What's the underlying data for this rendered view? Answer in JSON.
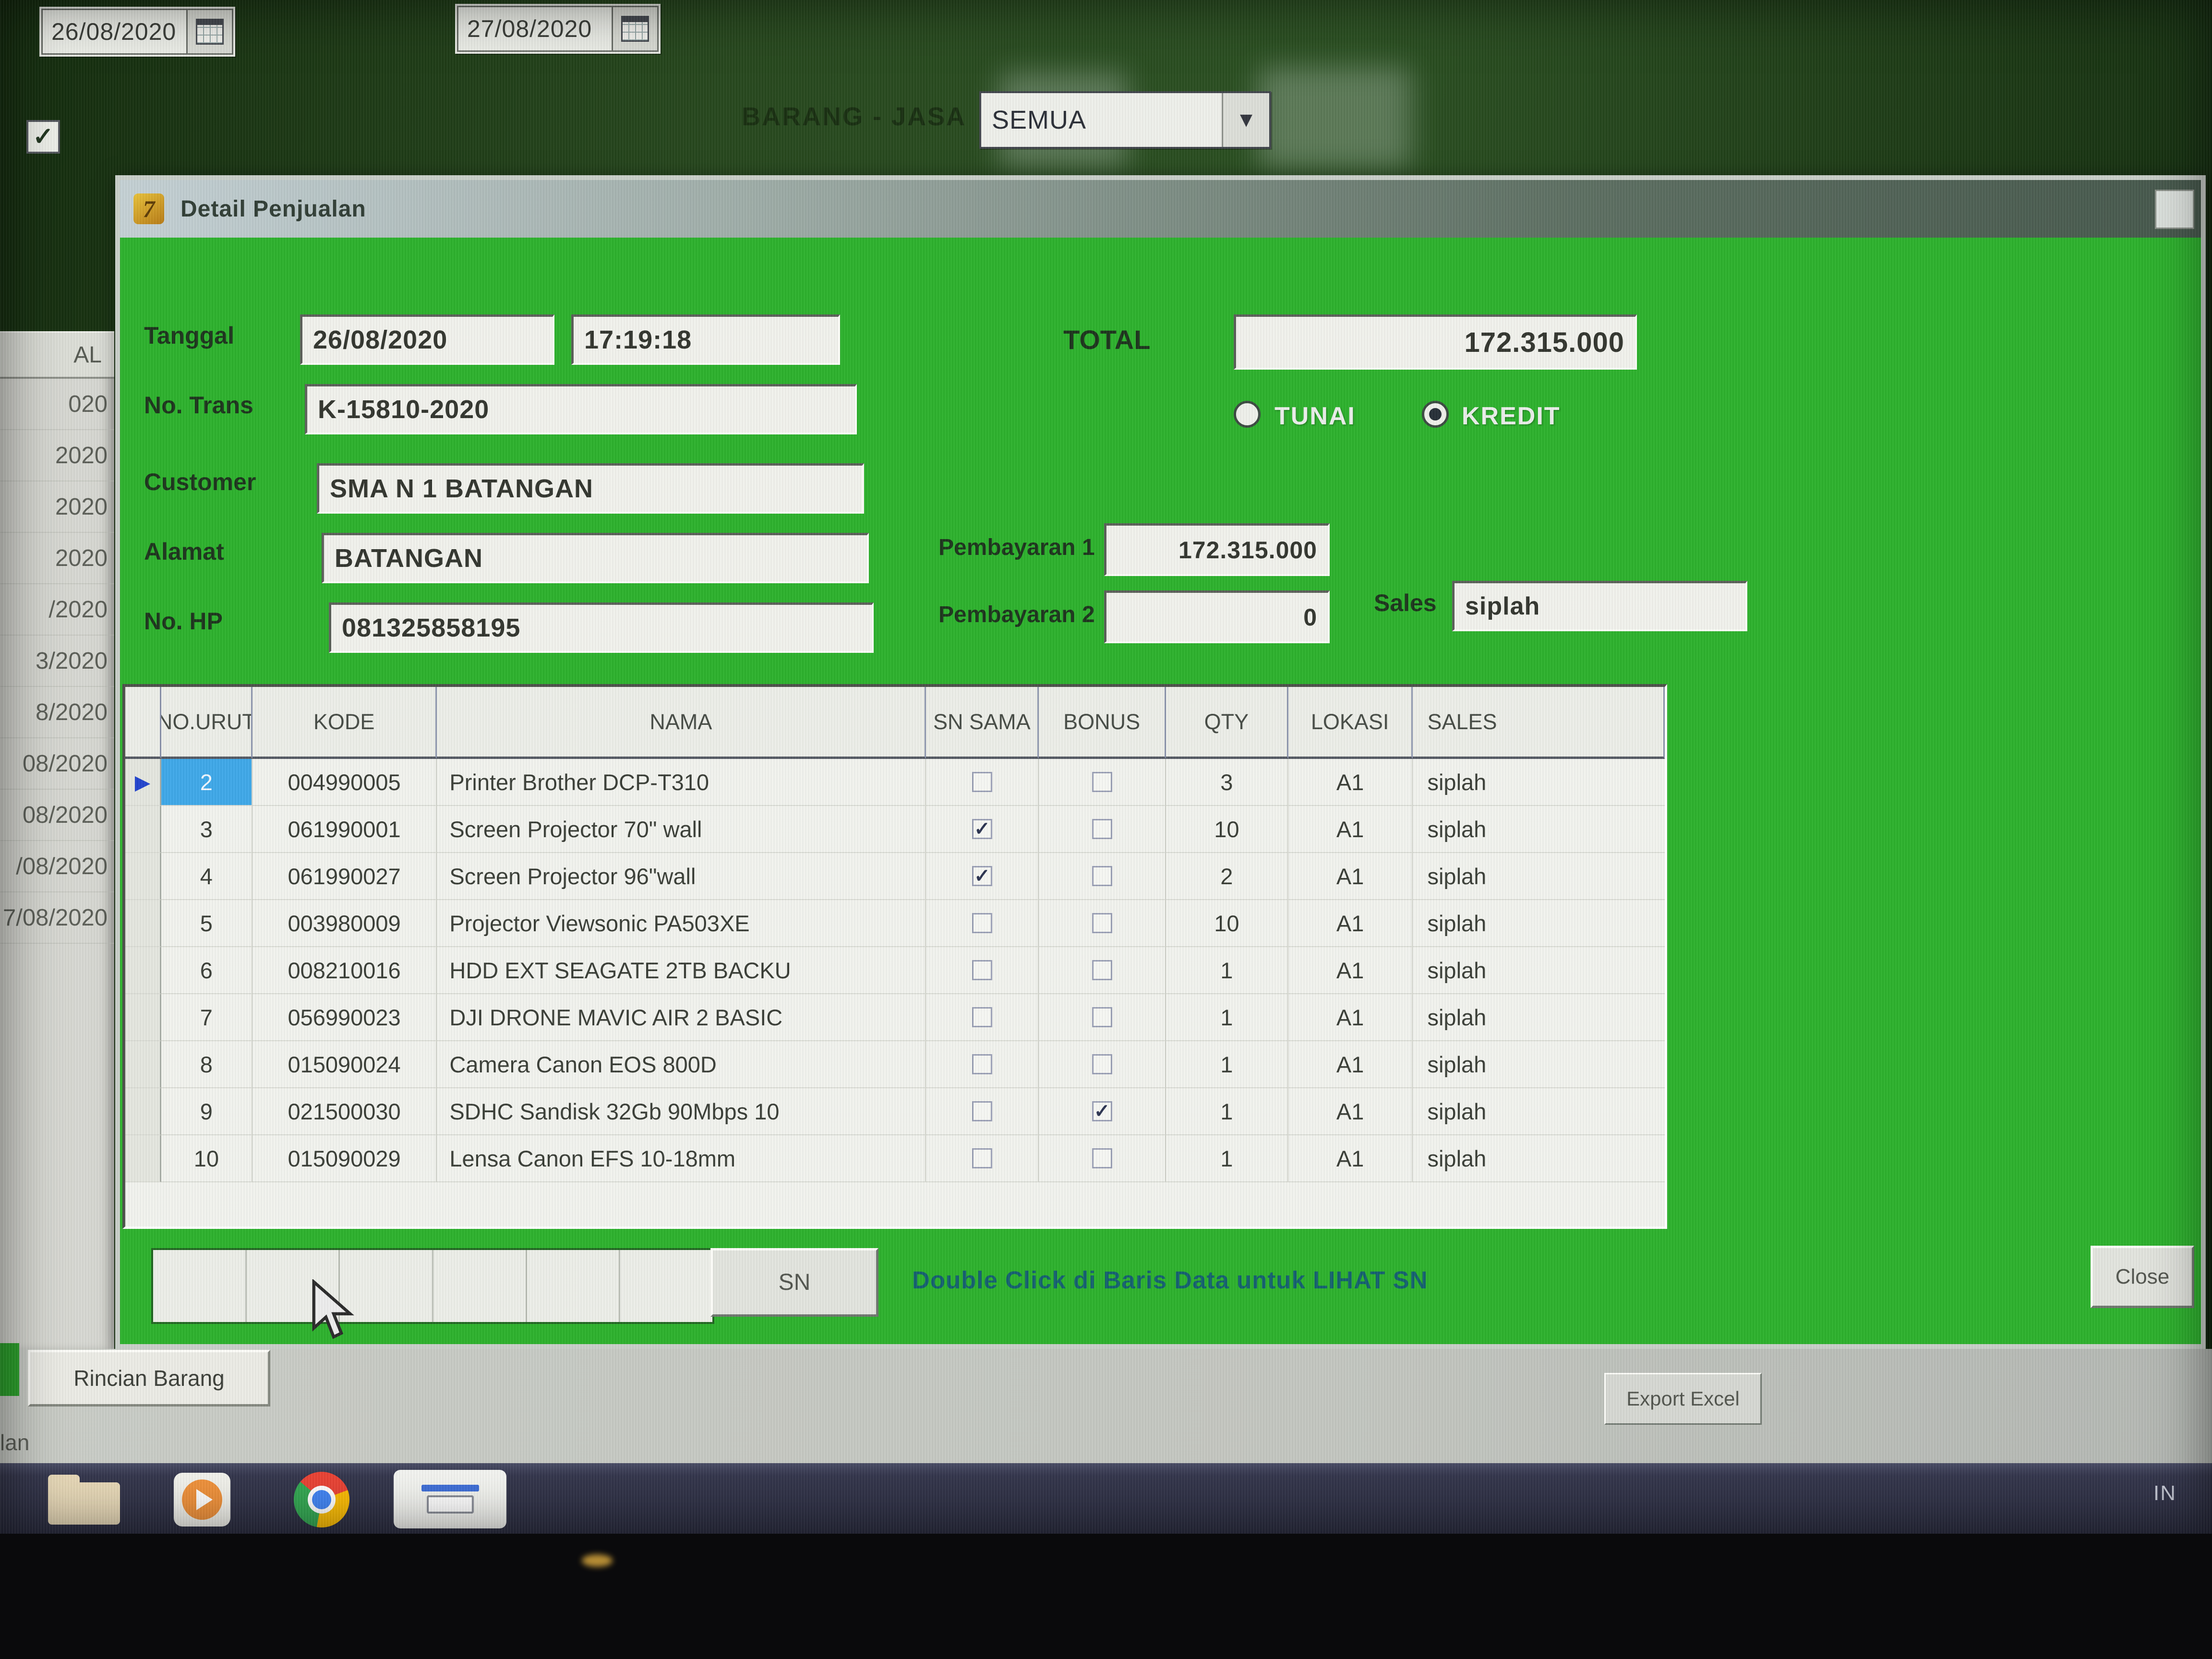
{
  "colors": {
    "dialog_green": "#2db12d",
    "desktop_green": "#27481e",
    "selection_blue": "#3fa8e8",
    "hint_teal": "#15606f",
    "taskbar": "#2c2e42",
    "led_amber": "#d4a43c"
  },
  "filter_bar": {
    "date_from": "26/08/2020",
    "date_to": "27/08/2020",
    "barang_jasa_label": "BARANG - JASA",
    "barang_jasa_value": "SEMUA",
    "dropdown_arrow": "▼",
    "checkbox_checked": "✓"
  },
  "background_window": {
    "header_fragment": "AL",
    "date_fragments": [
      "020",
      "2020",
      "2020",
      "2020",
      "/2020",
      "3/2020",
      "8/2020",
      "08/2020",
      "08/2020",
      "/08/2020",
      "7/08/2020"
    ],
    "tab_fragment": "lan"
  },
  "dialog": {
    "title": "Detail Penjualan",
    "icon": "7",
    "form": {
      "tanggal_label": "Tanggal",
      "tanggal_date": "26/08/2020",
      "tanggal_time": "17:19:18",
      "no_trans_label": "No. Trans",
      "no_trans": "K-15810-2020",
      "customer_label": "Customer",
      "customer": "SMA N 1 BATANGAN",
      "alamat_label": "Alamat",
      "alamat": "BATANGAN",
      "no_hp_label": "No. HP",
      "no_hp": "081325858195"
    },
    "payment": {
      "total_label": "TOTAL",
      "total": "172.315.000",
      "tunai_label": "TUNAI",
      "kredit_label": "KREDIT",
      "selected_method": "KREDIT",
      "pembayaran1_label": "Pembayaran 1",
      "pembayaran1": "172.315.000",
      "pembayaran2_label": "Pembayaran 2",
      "pembayaran2": "0",
      "sales_label": "Sales",
      "sales": "siplah"
    },
    "table": {
      "headers": {
        "no_urut": "NO.URUT",
        "kode": "KODE",
        "nama": "NAMA",
        "sn_sama": "SN SAMA",
        "bonus": "BONUS",
        "qty": "QTY",
        "lokasi": "LOKASI",
        "sales": "SALES"
      },
      "rows": [
        {
          "no": "2",
          "kode": "004990005",
          "nama": "Printer Brother DCP-T310",
          "sn_sama": false,
          "bonus": false,
          "qty": "3",
          "lokasi": "A1",
          "sales": "siplah",
          "selected": true
        },
        {
          "no": "3",
          "kode": "061990001",
          "nama": "Screen Projector 70\" wall",
          "sn_sama": true,
          "bonus": false,
          "qty": "10",
          "lokasi": "A1",
          "sales": "siplah",
          "selected": false
        },
        {
          "no": "4",
          "kode": "061990027",
          "nama": "Screen Projector 96\"wall",
          "sn_sama": true,
          "bonus": false,
          "qty": "2",
          "lokasi": "A1",
          "sales": "siplah",
          "selected": false
        },
        {
          "no": "5",
          "kode": "003980009",
          "nama": "Projector Viewsonic PA503XE",
          "sn_sama": false,
          "bonus": false,
          "qty": "10",
          "lokasi": "A1",
          "sales": "siplah",
          "selected": false
        },
        {
          "no": "6",
          "kode": "008210016",
          "nama": "HDD EXT SEAGATE 2TB BACKU",
          "sn_sama": false,
          "bonus": false,
          "qty": "1",
          "lokasi": "A1",
          "sales": "siplah",
          "selected": false
        },
        {
          "no": "7",
          "kode": "056990023",
          "nama": "DJI DRONE MAVIC AIR 2 BASIC",
          "sn_sama": false,
          "bonus": false,
          "qty": "1",
          "lokasi": "A1",
          "sales": "siplah",
          "selected": false
        },
        {
          "no": "8",
          "kode": "015090024",
          "nama": "Camera Canon EOS 800D",
          "sn_sama": false,
          "bonus": false,
          "qty": "1",
          "lokasi": "A1",
          "sales": "siplah",
          "selected": false
        },
        {
          "no": "9",
          "kode": "021500030",
          "nama": "SDHC Sandisk 32Gb 90Mbps 10",
          "sn_sama": false,
          "bonus": true,
          "qty": "1",
          "lokasi": "A1",
          "sales": "siplah",
          "selected": false
        },
        {
          "no": "10",
          "kode": "015090029",
          "nama": "Lensa Canon EFS 10-18mm",
          "sn_sama": false,
          "bonus": false,
          "qty": "1",
          "lokasi": "A1",
          "sales": "siplah",
          "selected": false
        }
      ]
    },
    "footer": {
      "sn_button": "SN",
      "hint": "Double Click di Baris Data untuk LIHAT SN",
      "close_button": "Close"
    }
  },
  "bottom_bar": {
    "rincian_barang_tab": "Rincian Barang",
    "export_excel_button": "Export Excel"
  },
  "taskbar": {
    "icons": [
      "folder-icon",
      "media-player-icon",
      "chrome-icon",
      "pos-app-icon"
    ],
    "language_indicator": "IN"
  }
}
